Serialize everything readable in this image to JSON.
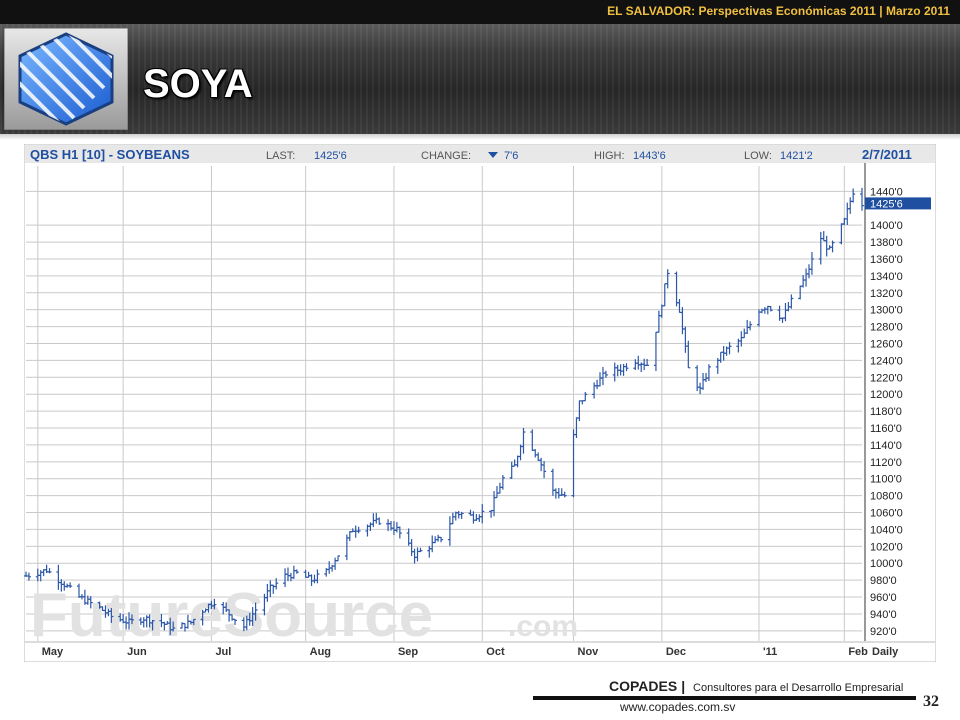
{
  "header": {
    "top_text": "EL SALVADOR: Perspectivas Económicas 2011 | Marzo 2011",
    "title": "SOYA",
    "logo_icon": "copades-hexagon-logo"
  },
  "chart_data": {
    "type": "ohlc",
    "symbol_label": "QBS H1 [10] - SOYBEANS",
    "last_label": "LAST:",
    "last": "1425'6",
    "change_label": "CHANGE:",
    "change": "7'6",
    "change_direction": "down",
    "high_label": "HIGH:",
    "high": "1443'6",
    "low_label": "LOW:",
    "low": "1421'2",
    "date": "2/7/2011",
    "current_price_tag": "1425'6",
    "current_price_value": 1425.75,
    "ylim": [
      908,
      1470
    ],
    "y_ticks": [
      {
        "value": 920,
        "label": "920'0"
      },
      {
        "value": 940,
        "label": "940'0"
      },
      {
        "value": 960,
        "label": "960'0"
      },
      {
        "value": 980,
        "label": "980'0"
      },
      {
        "value": 1000,
        "label": "1000'0"
      },
      {
        "value": 1020,
        "label": "1020'0"
      },
      {
        "value": 1040,
        "label": "1040'0"
      },
      {
        "value": 1060,
        "label": "1060'0"
      },
      {
        "value": 1080,
        "label": "1080'0"
      },
      {
        "value": 1100,
        "label": "1100'0"
      },
      {
        "value": 1120,
        "label": "1120'0"
      },
      {
        "value": 1140,
        "label": "1140'0"
      },
      {
        "value": 1160,
        "label": "1160'0"
      },
      {
        "value": 1180,
        "label": "1180'0"
      },
      {
        "value": 1200,
        "label": "1200'0"
      },
      {
        "value": 1220,
        "label": "1220'0"
      },
      {
        "value": 1240,
        "label": "1240'0"
      },
      {
        "value": 1260,
        "label": "1260'0"
      },
      {
        "value": 1280,
        "label": "1280'0"
      },
      {
        "value": 1300,
        "label": "1300'0"
      },
      {
        "value": 1320,
        "label": "1320'0"
      },
      {
        "value": 1340,
        "label": "1340'0"
      },
      {
        "value": 1360,
        "label": "1360'0"
      },
      {
        "value": 1380,
        "label": "1380'0"
      },
      {
        "value": 1400,
        "label": "1400'0"
      },
      {
        "value": 1440,
        "label": "1440'0"
      }
    ],
    "x_ticks": [
      {
        "label": "May",
        "date": "2010-05-03"
      },
      {
        "label": "Jun",
        "date": "2010-06-01"
      },
      {
        "label": "Jul",
        "date": "2010-07-01"
      },
      {
        "label": "Aug",
        "date": "2010-08-02"
      },
      {
        "label": "Sep",
        "date": "2010-09-01"
      },
      {
        "label": "Oct",
        "date": "2010-10-01"
      },
      {
        "label": "Nov",
        "date": "2010-11-01"
      },
      {
        "label": "Dec",
        "date": "2010-12-01"
      },
      {
        "label": "'11",
        "date": "2011-01-03"
      },
      {
        "label": "Feb",
        "date": "2011-02-01"
      }
    ],
    "x_range": [
      "2010-04-29",
      "2011-02-07"
    ],
    "interval_label": "Daily",
    "watermark": "FutureSource",
    "watermark_suffix": ".com",
    "closes": [
      {
        "date": "2010-04-29",
        "close": 985
      },
      {
        "date": "2010-05-06",
        "close": 992
      },
      {
        "date": "2010-05-11",
        "close": 978
      },
      {
        "date": "2010-05-17",
        "close": 960
      },
      {
        "date": "2010-05-24",
        "close": 947
      },
      {
        "date": "2010-05-28",
        "close": 937
      },
      {
        "date": "2010-06-03",
        "close": 930
      },
      {
        "date": "2010-06-08",
        "close": 935
      },
      {
        "date": "2010-06-14",
        "close": 930
      },
      {
        "date": "2010-06-18",
        "close": 922
      },
      {
        "date": "2010-06-24",
        "close": 930
      },
      {
        "date": "2010-06-29",
        "close": 948
      },
      {
        "date": "2010-07-02",
        "close": 955
      },
      {
        "date": "2010-07-07",
        "close": 940
      },
      {
        "date": "2010-07-12",
        "close": 925
      },
      {
        "date": "2010-07-16",
        "close": 945
      },
      {
        "date": "2010-07-21",
        "close": 970
      },
      {
        "date": "2010-07-26",
        "close": 985
      },
      {
        "date": "2010-07-30",
        "close": 988
      },
      {
        "date": "2010-08-04",
        "close": 980
      },
      {
        "date": "2010-08-09",
        "close": 990
      },
      {
        "date": "2010-08-13",
        "close": 1010
      },
      {
        "date": "2010-08-18",
        "close": 1040
      },
      {
        "date": "2010-08-23",
        "close": 1045
      },
      {
        "date": "2010-08-27",
        "close": 1050
      },
      {
        "date": "2010-09-02",
        "close": 1040
      },
      {
        "date": "2010-09-08",
        "close": 1010
      },
      {
        "date": "2010-09-13",
        "close": 1020
      },
      {
        "date": "2010-09-17",
        "close": 1030
      },
      {
        "date": "2010-09-22",
        "close": 1060
      },
      {
        "date": "2010-09-28",
        "close": 1055
      },
      {
        "date": "2010-10-04",
        "close": 1065
      },
      {
        "date": "2010-10-08",
        "close": 1100
      },
      {
        "date": "2010-10-12",
        "close": 1115
      },
      {
        "date": "2010-10-15",
        "close": 1155
      },
      {
        "date": "2010-10-20",
        "close": 1125
      },
      {
        "date": "2010-10-25",
        "close": 1085
      },
      {
        "date": "2010-10-29",
        "close": 1080
      },
      {
        "date": "2010-11-01",
        "close": 1150
      },
      {
        "date": "2010-11-03",
        "close": 1190
      },
      {
        "date": "2010-11-08",
        "close": 1210
      },
      {
        "date": "2010-11-12",
        "close": 1225
      },
      {
        "date": "2010-11-17",
        "close": 1230
      },
      {
        "date": "2010-11-22",
        "close": 1240
      },
      {
        "date": "2010-11-26",
        "close": 1235
      },
      {
        "date": "2010-11-30",
        "close": 1290
      },
      {
        "date": "2010-12-03",
        "close": 1345
      },
      {
        "date": "2010-12-07",
        "close": 1300
      },
      {
        "date": "2010-12-10",
        "close": 1230
      },
      {
        "date": "2010-12-14",
        "close": 1205
      },
      {
        "date": "2010-12-17",
        "close": 1230
      },
      {
        "date": "2010-12-22",
        "close": 1250
      },
      {
        "date": "2010-12-28",
        "close": 1265
      },
      {
        "date": "2011-01-03",
        "close": 1300
      },
      {
        "date": "2011-01-06",
        "close": 1305
      },
      {
        "date": "2011-01-11",
        "close": 1290
      },
      {
        "date": "2011-01-14",
        "close": 1310
      },
      {
        "date": "2011-01-19",
        "close": 1340
      },
      {
        "date": "2011-01-24",
        "close": 1385
      },
      {
        "date": "2011-01-27",
        "close": 1370
      },
      {
        "date": "2011-02-01",
        "close": 1405
      },
      {
        "date": "2011-02-04",
        "close": 1440
      },
      {
        "date": "2011-02-07",
        "close": 1426
      }
    ],
    "colors": {
      "bars": "#2c57a8",
      "price_tag": "#1f4fa0",
      "grid": "#c9c9c9",
      "header_bg": "#e8e8e8"
    }
  },
  "footer": {
    "brand": "COPADES",
    "separator": "|",
    "tagline": "Consultores para el Desarrollo Empresarial",
    "url": "www.copades.com.sv",
    "page_number": "32"
  }
}
